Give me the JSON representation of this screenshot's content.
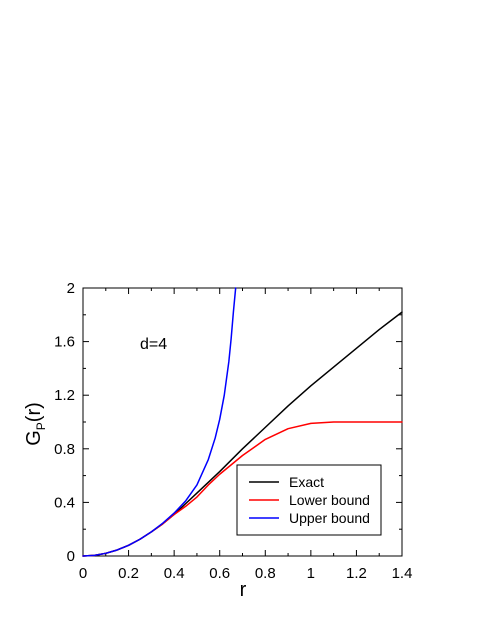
{
  "chart_data": {
    "type": "line",
    "xlabel": "r",
    "ylabel_main": "G",
    "ylabel_sub": "P",
    "ylabel_tail": "(r)",
    "annotation": "d=4",
    "xlim": [
      0,
      1.4
    ],
    "ylim": [
      0,
      2
    ],
    "xticks": [
      "0",
      "0.2",
      "0.4",
      "0.6",
      "0.8",
      "1",
      "1.2",
      "1.4"
    ],
    "yticks": [
      "0",
      "0.4",
      "0.8",
      "1.2",
      "1.6",
      "2"
    ],
    "legend_position": "bottom-right",
    "series": [
      {
        "name": "Exact",
        "color": "#000000",
        "x": [
          0,
          0.05,
          0.1,
          0.15,
          0.2,
          0.25,
          0.3,
          0.35,
          0.4,
          0.45,
          0.5,
          0.55,
          0.6,
          0.7,
          0.8,
          0.9,
          1.0,
          1.1,
          1.2,
          1.3,
          1.4
        ],
        "y": [
          0,
          0.005,
          0.02,
          0.045,
          0.08,
          0.125,
          0.18,
          0.24,
          0.31,
          0.39,
          0.47,
          0.55,
          0.63,
          0.8,
          0.96,
          1.12,
          1.27,
          1.41,
          1.55,
          1.69,
          1.82
        ]
      },
      {
        "name": "Lower bound",
        "color": "#ff0000",
        "x": [
          0,
          0.05,
          0.1,
          0.15,
          0.2,
          0.25,
          0.3,
          0.35,
          0.4,
          0.45,
          0.5,
          0.55,
          0.6,
          0.65,
          0.7,
          0.75,
          0.8,
          0.85,
          0.9,
          1.0,
          1.1,
          1.2,
          1.3,
          1.4
        ],
        "y": [
          0,
          0.005,
          0.02,
          0.045,
          0.08,
          0.125,
          0.18,
          0.24,
          0.31,
          0.37,
          0.44,
          0.53,
          0.61,
          0.68,
          0.75,
          0.81,
          0.87,
          0.91,
          0.95,
          0.99,
          1.0,
          1.0,
          1.0,
          1.0
        ]
      },
      {
        "name": "Upper bound",
        "color": "#0000ff",
        "x": [
          0,
          0.05,
          0.1,
          0.15,
          0.2,
          0.25,
          0.3,
          0.35,
          0.4,
          0.45,
          0.5,
          0.55,
          0.58,
          0.6,
          0.62,
          0.64,
          0.65,
          0.66,
          0.67
        ],
        "y": [
          0,
          0.005,
          0.02,
          0.045,
          0.08,
          0.125,
          0.18,
          0.245,
          0.32,
          0.41,
          0.53,
          0.72,
          0.88,
          1.02,
          1.2,
          1.45,
          1.62,
          1.82,
          2.0
        ]
      }
    ]
  }
}
